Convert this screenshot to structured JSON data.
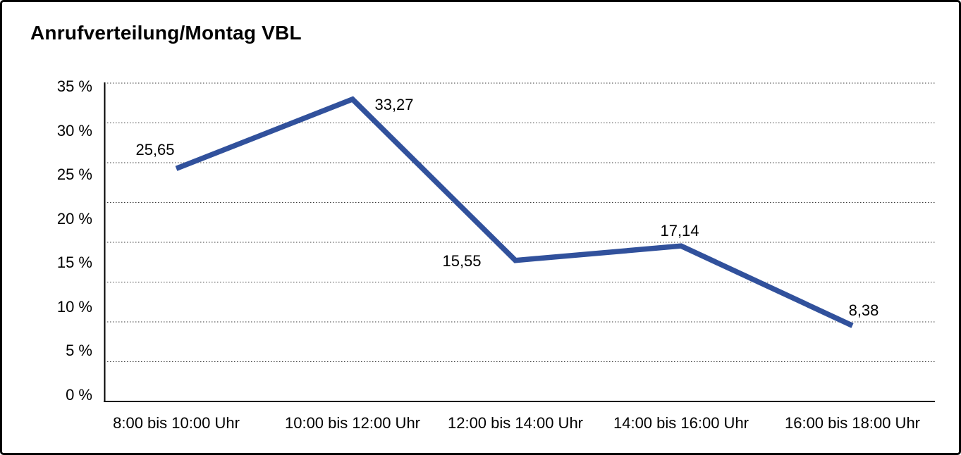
{
  "chart_data": {
    "type": "line",
    "title": "Anrufverteilung/Montag VBL",
    "categories": [
      "8:00 bis 10:00 Uhr",
      "10:00 bis 12:00 Uhr",
      "12:00 bis 14:00 Uhr",
      "14:00 bis 16:00 Uhr",
      "16:00 bis 18:00 Uhr"
    ],
    "values": [
      25.65,
      33.27,
      15.55,
      17.14,
      8.38
    ],
    "point_labels": [
      "25,65",
      "33,27",
      "15,55",
      "17,14",
      "8,38"
    ],
    "y_tick_labels": [
      "35 %",
      "30 %",
      "25 %",
      "20 %",
      "15 %",
      "10 %",
      "5 %",
      "0 %"
    ],
    "xlabel": "",
    "ylabel": "",
    "ylim": [
      0,
      35
    ],
    "grid": "horizontal-dotted",
    "legend": "none",
    "line_color": "#31519C",
    "axis_color": "#000000",
    "text_color": "#000000"
  }
}
